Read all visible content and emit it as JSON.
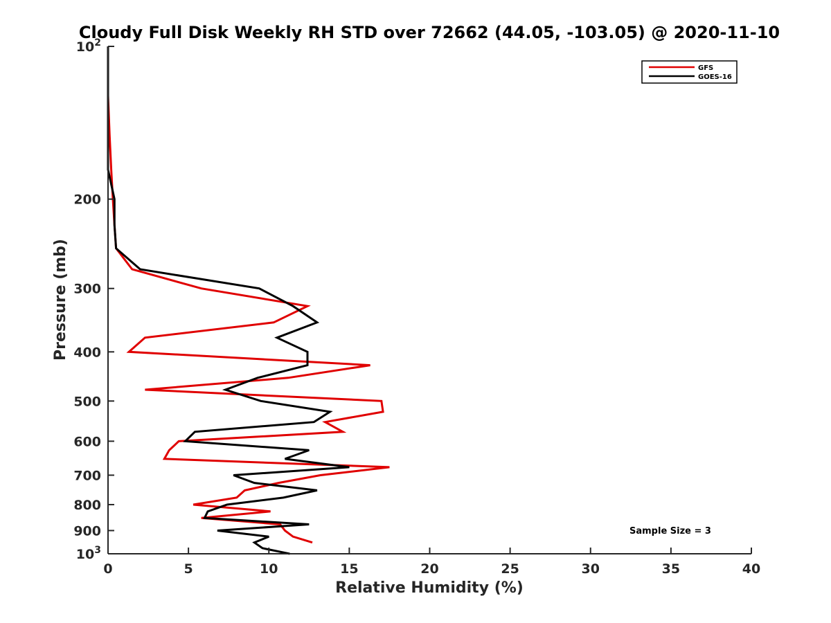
{
  "chart_data": {
    "type": "line",
    "title": "Cloudy Full Disk Weekly RH STD over 72662 (44.05, -103.05) @ 2020-11-10",
    "xlabel": "Relative Humidity (%)",
    "ylabel": "Pressure (mb)",
    "xlim": [
      0,
      40
    ],
    "ylim": [
      100,
      1000
    ],
    "y_scale": "log",
    "y_reversed": true,
    "x_ticks": [
      "0",
      "5",
      "10",
      "15",
      "20",
      "25",
      "30",
      "35",
      "40"
    ],
    "y_ticks": [
      {
        "value": 100,
        "base": "10",
        "exp": "2"
      },
      {
        "value": 200,
        "label": "200"
      },
      {
        "value": 300,
        "label": "300"
      },
      {
        "value": 400,
        "label": "400"
      },
      {
        "value": 500,
        "label": "500"
      },
      {
        "value": 600,
        "label": "600"
      },
      {
        "value": 700,
        "label": "700"
      },
      {
        "value": 800,
        "label": "800"
      },
      {
        "value": 900,
        "label": "900"
      },
      {
        "value": 1000,
        "base": "10",
        "exp": "3"
      }
    ],
    "grid": false,
    "legend_position": "top-right",
    "annotation": "Sample Size = 3",
    "series": [
      {
        "name": "GFS",
        "color": "#e00000",
        "points": [
          [
            0.0,
            100
          ],
          [
            0.0,
            125
          ],
          [
            0.1,
            150
          ],
          [
            0.2,
            175
          ],
          [
            0.3,
            200
          ],
          [
            0.4,
            225
          ],
          [
            0.5,
            250
          ],
          [
            1.5,
            275
          ],
          [
            5.8,
            300
          ],
          [
            12.4,
            325
          ],
          [
            10.3,
            350
          ],
          [
            2.3,
            375
          ],
          [
            1.3,
            400
          ],
          [
            16.3,
            425
          ],
          [
            11.2,
            450
          ],
          [
            2.3,
            475
          ],
          [
            17.0,
            500
          ],
          [
            17.1,
            525
          ],
          [
            13.5,
            550
          ],
          [
            14.6,
            575
          ],
          [
            4.4,
            600
          ],
          [
            3.8,
            625
          ],
          [
            3.5,
            650
          ],
          [
            17.5,
            675
          ],
          [
            13.2,
            700
          ],
          [
            10.6,
            725
          ],
          [
            8.5,
            750
          ],
          [
            8.0,
            775
          ],
          [
            5.3,
            800
          ],
          [
            10.1,
            825
          ],
          [
            5.8,
            850
          ],
          [
            10.7,
            875
          ],
          [
            11.0,
            900
          ],
          [
            11.5,
            925
          ],
          [
            12.7,
            950
          ]
        ]
      },
      {
        "name": "GOES-16",
        "color": "#000000",
        "points": [
          [
            0.0,
            100
          ],
          [
            0.0,
            125
          ],
          [
            0.0,
            150
          ],
          [
            0.0,
            175
          ],
          [
            0.4,
            200
          ],
          [
            0.4,
            225
          ],
          [
            0.5,
            250
          ],
          [
            2.0,
            275
          ],
          [
            9.4,
            300
          ],
          [
            11.5,
            325
          ],
          [
            13.0,
            350
          ],
          [
            10.5,
            375
          ],
          [
            12.4,
            400
          ],
          [
            12.4,
            425
          ],
          [
            9.3,
            450
          ],
          [
            7.3,
            475
          ],
          [
            9.5,
            500
          ],
          [
            13.8,
            525
          ],
          [
            12.8,
            550
          ],
          [
            5.4,
            575
          ],
          [
            4.8,
            600
          ],
          [
            12.5,
            625
          ],
          [
            11.0,
            650
          ],
          [
            15.0,
            675
          ],
          [
            7.8,
            700
          ],
          [
            9.1,
            725
          ],
          [
            13.0,
            750
          ],
          [
            10.9,
            775
          ],
          [
            7.4,
            800
          ],
          [
            6.2,
            825
          ],
          [
            6.0,
            850
          ],
          [
            12.5,
            875
          ],
          [
            6.8,
            900
          ],
          [
            10.0,
            925
          ],
          [
            9.1,
            950
          ],
          [
            9.6,
            975
          ],
          [
            11.3,
            1000
          ]
        ]
      }
    ]
  }
}
